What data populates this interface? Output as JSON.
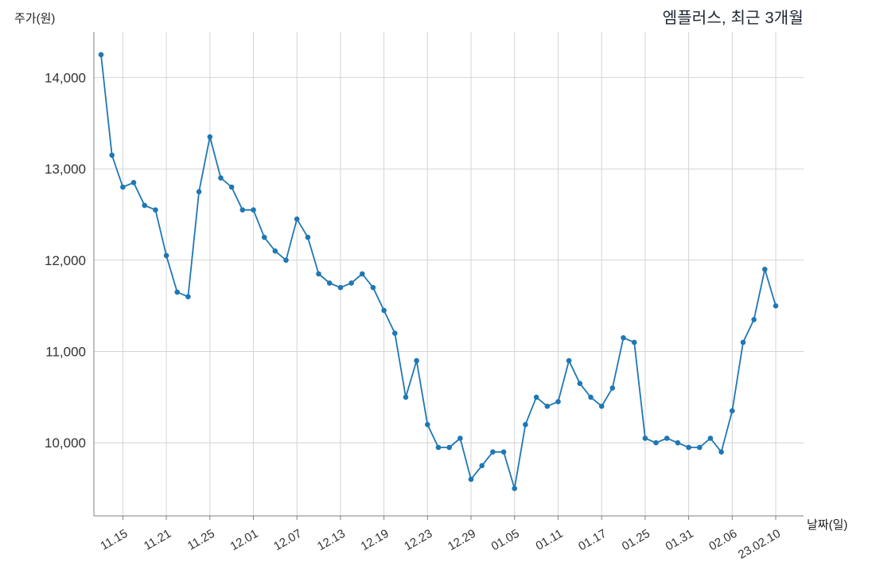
{
  "header": {
    "title": "엠플러스, 최근 3개월",
    "y_axis_label": "주가(원)",
    "x_axis_label": "날짜(일)"
  },
  "chart_data": {
    "type": "line",
    "title": "엠플러스, 최근 3개월",
    "series_name": "주가",
    "xlabel": "날짜(일)",
    "ylabel": "주가(원)",
    "ylim": [
      9200,
      14500
    ],
    "grid": true,
    "legend_position": "none",
    "line_color": "#1f77b4",
    "grid_color": "#d4d4d4",
    "spine_color": "#808080",
    "tick_text_color": "#333333",
    "marker": "circle",
    "y_ticks": [
      {
        "value": 10000,
        "label": "10,000"
      },
      {
        "value": 11000,
        "label": "11,000"
      },
      {
        "value": 12000,
        "label": "12,000"
      },
      {
        "value": 13000,
        "label": "13,000"
      },
      {
        "value": 14000,
        "label": "14,000"
      }
    ],
    "x_ticks": [
      {
        "index": 2,
        "label": "11.15"
      },
      {
        "index": 6,
        "label": "11.21"
      },
      {
        "index": 10,
        "label": "11.25"
      },
      {
        "index": 14,
        "label": "12.01"
      },
      {
        "index": 18,
        "label": "12.07"
      },
      {
        "index": 22,
        "label": "12.13"
      },
      {
        "index": 26,
        "label": "12.19"
      },
      {
        "index": 30,
        "label": "12.23"
      },
      {
        "index": 34,
        "label": "12.29"
      },
      {
        "index": 38,
        "label": "01.05"
      },
      {
        "index": 42,
        "label": "01.11"
      },
      {
        "index": 46,
        "label": "01.17"
      },
      {
        "index": 50,
        "label": "01.25"
      },
      {
        "index": 54,
        "label": "01.31"
      },
      {
        "index": 58,
        "label": "02.06"
      },
      {
        "index": 62,
        "label": "23.02.10"
      }
    ],
    "values": [
      14250,
      13150,
      12800,
      12850,
      12600,
      12550,
      12050,
      11650,
      11600,
      12750,
      13350,
      12900,
      12800,
      12550,
      12550,
      12250,
      12100,
      12000,
      12450,
      12250,
      11850,
      11750,
      11700,
      11750,
      11850,
      11700,
      11450,
      11200,
      10500,
      10900,
      10200,
      9950,
      9950,
      10050,
      9600,
      9750,
      9900,
      9900,
      9500,
      10200,
      10500,
      10400,
      10450,
      10900,
      10650,
      10500,
      10400,
      10600,
      11150,
      11100,
      10050,
      10000,
      10050,
      10000,
      9950,
      9950,
      10050,
      9900,
      10350,
      11100,
      11350,
      11900,
      11500
    ]
  }
}
